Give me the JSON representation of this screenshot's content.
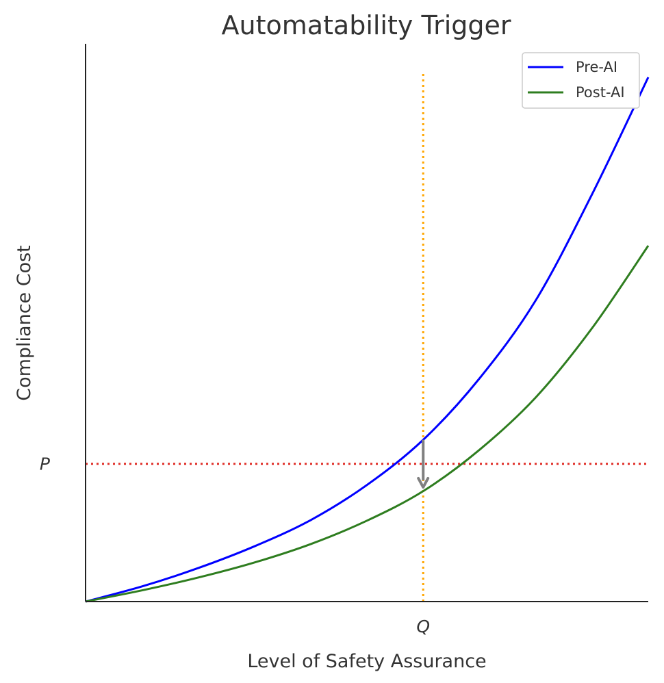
{
  "chart_data": {
    "type": "line",
    "title": "Automatability Trigger",
    "xlabel": "Level of Safety Assurance",
    "ylabel": "Compliance Cost",
    "xlim": [
      0,
      1
    ],
    "ylim": [
      0,
      1
    ],
    "x_ticks": [
      {
        "value": 0.6,
        "label": "Q"
      }
    ],
    "y_ticks": [
      {
        "value": 0.247,
        "label": "P"
      }
    ],
    "grid": false,
    "legend": "top-right",
    "series": [
      {
        "name": "Pre-AI",
        "color": "#0000ff",
        "x": [
          0,
          0.1,
          0.2,
          0.3,
          0.4,
          0.5,
          0.6,
          0.7,
          0.8,
          0.9,
          1.0
        ],
        "y": [
          0,
          0.027,
          0.06,
          0.099,
          0.146,
          0.209,
          0.29,
          0.4,
          0.54,
          0.73,
          0.94
        ]
      },
      {
        "name": "Post-AI",
        "color": "#2e7d1f",
        "x": [
          0,
          0.1,
          0.2,
          0.3,
          0.4,
          0.5,
          0.6,
          0.7,
          0.8,
          0.9,
          1.0
        ],
        "y": [
          0,
          0.02,
          0.043,
          0.07,
          0.103,
          0.145,
          0.198,
          0.272,
          0.366,
          0.49,
          0.638
        ]
      }
    ],
    "reference_lines": [
      {
        "orientation": "horizontal",
        "value": 0.247,
        "color": "#e0302a",
        "style": "dotted"
      },
      {
        "orientation": "vertical",
        "value": 0.6,
        "color": "#ffa500",
        "style": "dotted",
        "y_max": 0.95
      }
    ],
    "annotations": [
      {
        "type": "arrow",
        "x": 0.6,
        "from_y": 0.29,
        "to_y": 0.205,
        "color": "#808080"
      }
    ]
  }
}
